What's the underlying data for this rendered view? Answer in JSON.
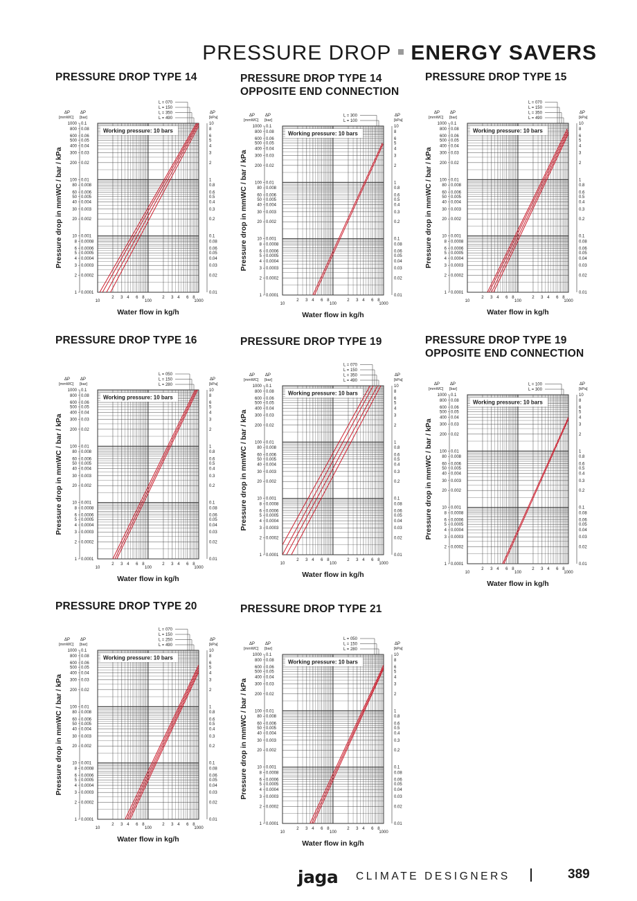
{
  "header": {
    "light": "PRESSURE DROP",
    "bold": "ENERGY SAVERS"
  },
  "footer": {
    "brand": "jaga",
    "tagline": "CLIMATE DESIGNERS",
    "page": "389"
  },
  "colors": {
    "series": "#cc1f2e",
    "grid": "#333333",
    "text": "#1a1a1a"
  },
  "axis_labels": {
    "mmwc_unit": "[mmWC]",
    "bar_unit": "[bar]",
    "kpa_unit": "[kPa]",
    "dp": "ΔP"
  },
  "chart_data": [
    {
      "type": "line",
      "title": "PRESSURE DROP TYPE 14",
      "annotation": "Working pressure: 10 bars",
      "xlabel": "Water flow in kg/h",
      "ylabel": "Pressure drop in mmWC / bar / kPa",
      "xscale": "log",
      "yscale": "log",
      "xlim": [
        10,
        1000
      ],
      "ylim_mmwc": [
        1,
        1000
      ],
      "legend_placement": "top-right",
      "series": [
        {
          "name": "L = 070",
          "x": [
            11,
            900
          ],
          "y": [
            1,
            1000
          ]
        },
        {
          "name": "L = 150",
          "x": [
            12.5,
            950
          ],
          "y": [
            1,
            1000
          ]
        },
        {
          "name": "L = 350",
          "x": [
            15,
            1000
          ],
          "y": [
            1,
            1000
          ]
        },
        {
          "name": "L = 490",
          "x": [
            18,
            1000
          ],
          "y": [
            1,
            900
          ]
        }
      ]
    },
    {
      "type": "line",
      "title": "PRESSURE DROP TYPE 14\nOPPOSITE END CONNECTION",
      "annotation": "Working pressure: 10 bars",
      "xlabel": "Water flow in kg/h",
      "ylabel": "Pressure drop in mmWC / bar / kPa",
      "xscale": "log",
      "yscale": "log",
      "xlim": [
        10,
        1000
      ],
      "ylim_mmwc": [
        1,
        1000
      ],
      "legend_placement": "top-right",
      "series": [
        {
          "name": "L = 300",
          "x": [
            40,
            950
          ],
          "y": [
            1,
            500
          ]
        },
        {
          "name": "L = 100",
          "x": [
            43,
            980
          ],
          "y": [
            1,
            480
          ]
        }
      ]
    },
    {
      "type": "line",
      "title": "PRESSURE DROP TYPE 15",
      "annotation": "Working pressure: 10 bars",
      "xlabel": "Water flow in kg/h",
      "ylabel": "Pressure drop in mmWC / bar / kPa",
      "xscale": "log",
      "yscale": "log",
      "xlim": [
        10,
        1000
      ],
      "ylim_mmwc": [
        1,
        1000
      ],
      "legend_placement": "top-right",
      "series": [
        {
          "name": "L = 070",
          "x": [
            25,
            950
          ],
          "y": [
            1,
            800
          ]
        },
        {
          "name": "L = 150",
          "x": [
            27,
            970
          ],
          "y": [
            1,
            750
          ]
        },
        {
          "name": "L = 350",
          "x": [
            30,
            990
          ],
          "y": [
            1,
            700
          ]
        },
        {
          "name": "L = 490",
          "x": [
            33,
            1000
          ],
          "y": [
            1,
            650
          ]
        }
      ]
    },
    {
      "type": "line",
      "title": "PRESSURE DROP TYPE 16",
      "annotation": "Working pressure: 10 bars",
      "xlabel": "Water flow in kg/h",
      "ylabel": "Pressure drop in mmWC / bar / kPa",
      "xscale": "log",
      "yscale": "log",
      "xlim": [
        10,
        1000
      ],
      "ylim_mmwc": [
        1,
        1000
      ],
      "legend_placement": "top-right",
      "series": [
        {
          "name": "L = 050",
          "x": [
            20,
            850
          ],
          "y": [
            1,
            1000
          ]
        },
        {
          "name": "L = 150",
          "x": [
            22,
            900
          ],
          "y": [
            1,
            1000
          ]
        },
        {
          "name": "L = 280",
          "x": [
            24,
            950
          ],
          "y": [
            1,
            1000
          ]
        }
      ]
    },
    {
      "type": "line",
      "title": "PRESSURE DROP TYPE 19",
      "annotation": "Working pressure: 10 bars",
      "xlabel": "Water flow in kg/h",
      "ylabel": "Pressure drop in mmWC / bar / kPa",
      "xscale": "log",
      "yscale": "log",
      "xlim": [
        10,
        1000
      ],
      "ylim_mmwc": [
        1,
        1000
      ],
      "legend_placement": "top-right",
      "series": [
        {
          "name": "L = 070",
          "x": [
            10,
            540
          ],
          "y": [
            1.5,
            1000
          ]
        },
        {
          "name": "L = 150",
          "x": [
            10,
            620
          ],
          "y": [
            1,
            1000
          ]
        },
        {
          "name": "L = 350",
          "x": [
            12,
            760
          ],
          "y": [
            1,
            1000
          ]
        },
        {
          "name": "L = 490",
          "x": [
            15,
            880
          ],
          "y": [
            1,
            1000
          ]
        }
      ]
    },
    {
      "type": "line",
      "title": "PRESSURE DROP TYPE 19\nOPPOSITE END CONNECTION",
      "annotation": "Working pressure: 10 bars",
      "xlabel": "Water flow in kg/h",
      "ylabel": "Pressure drop in mmWC / bar / kPa",
      "xscale": "log",
      "yscale": "log",
      "xlim": [
        10,
        1000
      ],
      "ylim_mmwc": [
        1,
        1000
      ],
      "legend_placement": "top-right",
      "series": [
        {
          "name": "L = 100",
          "x": [
            50,
            1000
          ],
          "y": [
            1,
            400
          ]
        },
        {
          "name": "L = 300",
          "x": [
            53,
            1000
          ],
          "y": [
            1,
            370
          ]
        }
      ]
    },
    {
      "type": "line",
      "title": "PRESSURE DROP TYPE 20",
      "annotation": "Working pressure: 10 bars",
      "xlabel": "Water flow in kg/h",
      "ylabel": "Pressure drop in mmWC / bar / kPa",
      "xscale": "log",
      "yscale": "log",
      "xlim": [
        10,
        1000
      ],
      "ylim_mmwc": [
        1,
        1000
      ],
      "legend_placement": "top-right",
      "series": [
        {
          "name": "L = 070",
          "x": [
            35,
            1000
          ],
          "y": [
            1,
            550
          ]
        },
        {
          "name": "L = 150",
          "x": [
            38,
            1000
          ],
          "y": [
            1,
            500
          ]
        },
        {
          "name": "L = 250",
          "x": [
            41,
            1000
          ],
          "y": [
            1,
            450
          ]
        },
        {
          "name": "L = 490",
          "x": [
            44,
            1000
          ],
          "y": [
            1,
            410
          ]
        }
      ]
    },
    {
      "type": "line",
      "title": "PRESSURE DROP TYPE 21",
      "annotation": "Working pressure: 10 bars",
      "xlabel": "Water flow in kg/h",
      "ylabel": "Pressure drop in mmWC / bar / kPa",
      "xscale": "log",
      "yscale": "log",
      "xlim": [
        10,
        1000
      ],
      "ylim_mmwc": [
        1,
        1000
      ],
      "legend_placement": "top-right",
      "series": [
        {
          "name": "L = 050",
          "x": [
            35,
            1000
          ],
          "y": [
            1,
            650
          ]
        },
        {
          "name": "L = 150",
          "x": [
            38,
            1000
          ],
          "y": [
            1,
            600
          ]
        },
        {
          "name": "L = 280",
          "x": [
            41,
            1000
          ],
          "y": [
            1,
            560
          ]
        }
      ]
    }
  ]
}
